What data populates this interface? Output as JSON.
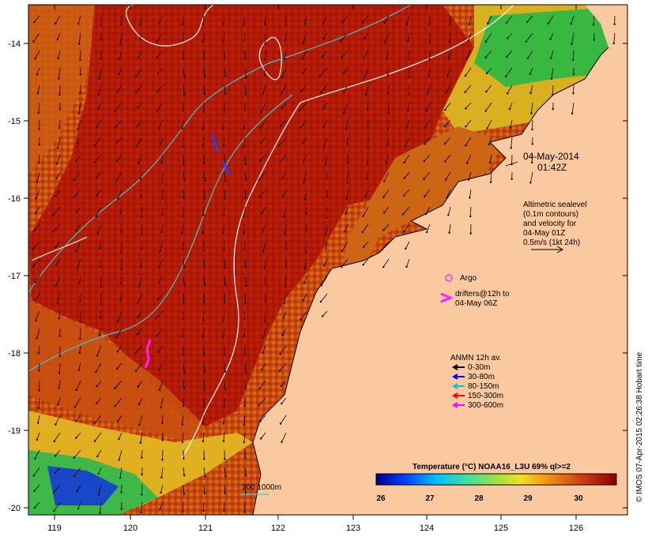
{
  "map": {
    "lon_ticks": [
      "119",
      "120",
      "121",
      "122",
      "123",
      "124",
      "125",
      "126"
    ],
    "lat_ticks": [
      "-14",
      "-15",
      "-16",
      "-17",
      "-18",
      "-19",
      "-20"
    ]
  },
  "annotations": {
    "date_line1": "04-May-2014",
    "date_line2": "01:42Z",
    "alt_line1": "Altimetric sealevel",
    "alt_line2": "(0.1m contours)",
    "alt_line3": "and velocity for",
    "alt_line4": "04-May 01Z",
    "alt_line5": "0.5m/s (1kt 24h)",
    "argo_label": "Argo",
    "drifters_line1": "drifters@12h to",
    "drifters_line2": "04-May 06Z",
    "anmn_title": "ANMN 12h av.",
    "anmn_items": [
      "0-30m",
      "30-80m",
      "80-150m",
      "150-300m",
      "300-600m"
    ],
    "isobath_label": "200  1000m",
    "side_credit": "© IMOS 07-Apr-2015 02:26:38 Hobart time"
  },
  "colorbar": {
    "title": "Temperature (°C) NOAA16_L3U 69% ql>=2",
    "ticks": [
      "26",
      "27",
      "28",
      "29",
      "30"
    ]
  },
  "colors": {
    "land": "#fbc9a0",
    "sea_main": "#b01808",
    "sea_orange": "#d05a10",
    "sea_yellow": "#e8c020",
    "sea_green": "#30b040",
    "sea_blue": "#1050c0",
    "argo": "#e040e0",
    "drifter": "#ff20ff",
    "contour_white": "#ffffff",
    "isobath_cyan": "#40c8c8",
    "anmn_colors": [
      "#000000",
      "#0000ff",
      "#00c8c8",
      "#ff0000",
      "#ff00ff"
    ]
  }
}
